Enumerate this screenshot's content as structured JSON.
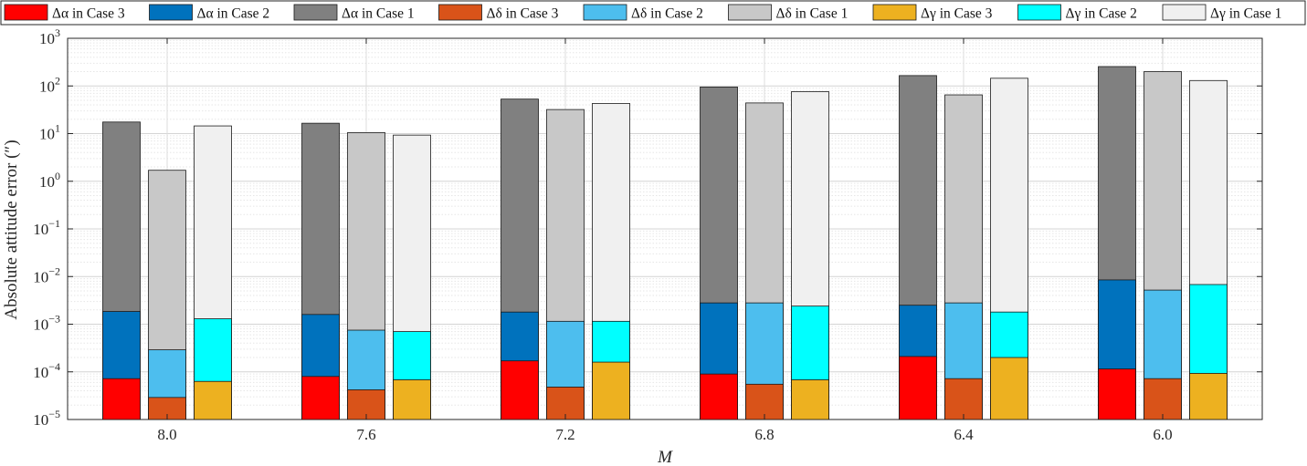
{
  "chart_data": {
    "type": "bar",
    "yscale": "log",
    "ylim": [
      1e-05,
      1000
    ],
    "ylabel": "Absolute attitude error (″)",
    "xlabel": "M",
    "categories": [
      "8.0",
      "7.6",
      "7.2",
      "6.8",
      "6.4",
      "6.0"
    ],
    "grid": true,
    "legend_position": "top",
    "groups": [
      {
        "name": "Δα",
        "series": [
          {
            "name": "Δα in Case 3",
            "color": "#ff0000",
            "values": [
              7.2e-05,
              8e-05,
              0.00017,
              9e-05,
              0.00021,
              0.000115
            ]
          },
          {
            "name": "Δα in Case 2",
            "color": "#0072bd",
            "values": [
              0.00185,
              0.0016,
              0.0018,
              0.0028,
              0.0025,
              0.0085
            ]
          },
          {
            "name": "Δα in Case 1",
            "color": "#808080",
            "values": [
              17.5,
              16.5,
              53,
              95,
              165,
              255
            ]
          }
        ]
      },
      {
        "name": "Δδ",
        "series": [
          {
            "name": "Δδ in Case 3",
            "color": "#d95319",
            "values": [
              2.9e-05,
              4.2e-05,
              4.8e-05,
              5.5e-05,
              7.2e-05,
              7.2e-05
            ]
          },
          {
            "name": "Δδ in Case 2",
            "color": "#4dbeee",
            "values": [
              0.00029,
              0.00075,
              0.00115,
              0.0028,
              0.0028,
              0.0052
            ]
          },
          {
            "name": "Δδ in Case 1",
            "color": "#c8c8c8",
            "values": [
              1.7,
              10.5,
              32,
              44,
              65,
              200
            ]
          }
        ]
      },
      {
        "name": "Δγ",
        "series": [
          {
            "name": "Δγ in Case 3",
            "color": "#edb120",
            "values": [
              6.3e-05,
              6.8e-05,
              0.00016,
              6.8e-05,
              0.0002,
              9.3e-05
            ]
          },
          {
            "name": "Δγ in Case 2",
            "color": "#00ffff",
            "values": [
              0.0013,
              0.0007,
              0.00115,
              0.0024,
              0.0018,
              0.0068
            ]
          },
          {
            "name": "Δγ in Case 1",
            "color": "#f0f0f0",
            "values": [
              14.5,
              9.3,
              43,
              76,
              145,
              130
            ]
          }
        ]
      }
    ],
    "legend": [
      "Δα in Case 3",
      "Δα in Case 2",
      "Δα in Case 1",
      "Δδ in Case 3",
      "Δδ in Case 2",
      "Δδ in Case 1",
      "Δγ in Case 3",
      "Δγ in Case 2",
      "Δγ in Case 1"
    ]
  }
}
